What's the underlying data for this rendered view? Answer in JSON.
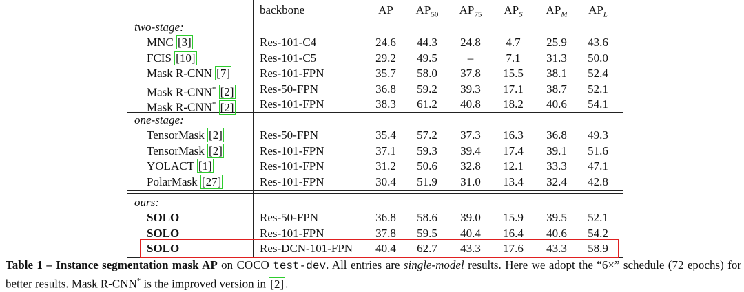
{
  "table": {
    "header": {
      "method": "",
      "backbone": "backbone",
      "metrics": [
        {
          "base": "AP",
          "sub": ""
        },
        {
          "base": "AP",
          "sub": "50"
        },
        {
          "base": "AP",
          "sub": "75"
        },
        {
          "base": "AP",
          "sub": "S"
        },
        {
          "base": "AP",
          "sub": "M"
        },
        {
          "base": "AP",
          "sub": "L"
        }
      ]
    },
    "groups": [
      {
        "label": "two-stage:",
        "rows": [
          {
            "name": "MNC",
            "sup": "",
            "ref": "[3]",
            "backbone": "Res-101-C4",
            "values": [
              "24.6",
              "44.3",
              "24.8",
              "4.7",
              "25.9",
              "43.6"
            ]
          },
          {
            "name": "FCIS",
            "sup": "",
            "ref": "[10]",
            "backbone": "Res-101-C5",
            "values": [
              "29.2",
              "49.5",
              "–",
              "7.1",
              "31.3",
              "50.0"
            ]
          },
          {
            "name": "Mask R-CNN",
            "sup": "",
            "ref": "[7]",
            "backbone": "Res-101-FPN",
            "values": [
              "35.7",
              "58.0",
              "37.8",
              "15.5",
              "38.1",
              "52.4"
            ]
          },
          {
            "name": "Mask R-CNN",
            "sup": "*",
            "ref": "[2]",
            "backbone": "Res-50-FPN",
            "values": [
              "36.8",
              "59.2",
              "39.3",
              "17.1",
              "38.7",
              "52.1"
            ]
          },
          {
            "name": "Mask R-CNN",
            "sup": "*",
            "ref": "[2]",
            "backbone": "Res-101-FPN",
            "values": [
              "38.3",
              "61.2",
              "40.8",
              "18.2",
              "40.6",
              "54.1"
            ]
          }
        ]
      },
      {
        "label": "one-stage:",
        "rows": [
          {
            "name": "TensorMask",
            "sup": "",
            "ref": "[2]",
            "backbone": "Res-50-FPN",
            "values": [
              "35.4",
              "57.2",
              "37.3",
              "16.3",
              "36.8",
              "49.3"
            ]
          },
          {
            "name": "TensorMask",
            "sup": "",
            "ref": "[2]",
            "backbone": "Res-101-FPN",
            "values": [
              "37.1",
              "59.3",
              "39.4",
              "17.4",
              "39.1",
              "51.6"
            ]
          },
          {
            "name": "YOLACT",
            "sup": "",
            "ref": "[1]",
            "backbone": "Res-101-FPN",
            "values": [
              "31.2",
              "50.6",
              "32.8",
              "12.1",
              "33.3",
              "47.1"
            ]
          },
          {
            "name": "PolarMask",
            "sup": "",
            "ref": "[27]",
            "backbone": "Res-101-FPN",
            "values": [
              "30.4",
              "51.9",
              "31.0",
              "13.4",
              "32.4",
              "42.8"
            ]
          }
        ]
      },
      {
        "label": "ours:",
        "rows": [
          {
            "name": "SOLO",
            "sup": "",
            "ref": "",
            "backbone": "Res-50-FPN",
            "values": [
              "36.8",
              "58.6",
              "39.0",
              "15.9",
              "39.5",
              "52.1"
            ]
          },
          {
            "name": "SOLO",
            "sup": "",
            "ref": "",
            "backbone": "Res-101-FPN",
            "values": [
              "37.8",
              "59.5",
              "40.4",
              "16.4",
              "40.6",
              "54.2"
            ]
          },
          {
            "name": "SOLO",
            "sup": "",
            "ref": "",
            "backbone": "Res-DCN-101-FPN",
            "values": [
              "40.4",
              "62.7",
              "43.3",
              "17.6",
              "43.3",
              "58.9"
            ]
          }
        ]
      }
    ]
  },
  "caption": [
    {
      "text": "Table 1 – Instance segmentation mask AP",
      "style": "bold"
    },
    {
      "text": " on COCO ",
      "style": "normal"
    },
    {
      "text": "test-dev",
      "style": "mono"
    },
    {
      "text": ". All entries are ",
      "style": "normal"
    },
    {
      "text": "single-model",
      "style": "italic"
    },
    {
      "text": " results. Here we adopt the “6×” schedule (72 epochs) for better results. Mask R-CNN",
      "style": "normal"
    },
    {
      "text": "*",
      "style": "sup"
    },
    {
      "text": " is the improved version in ",
      "style": "normal"
    },
    {
      "text": "[2]",
      "style": "ref"
    },
    {
      "text": ".",
      "style": "normal"
    }
  ]
}
